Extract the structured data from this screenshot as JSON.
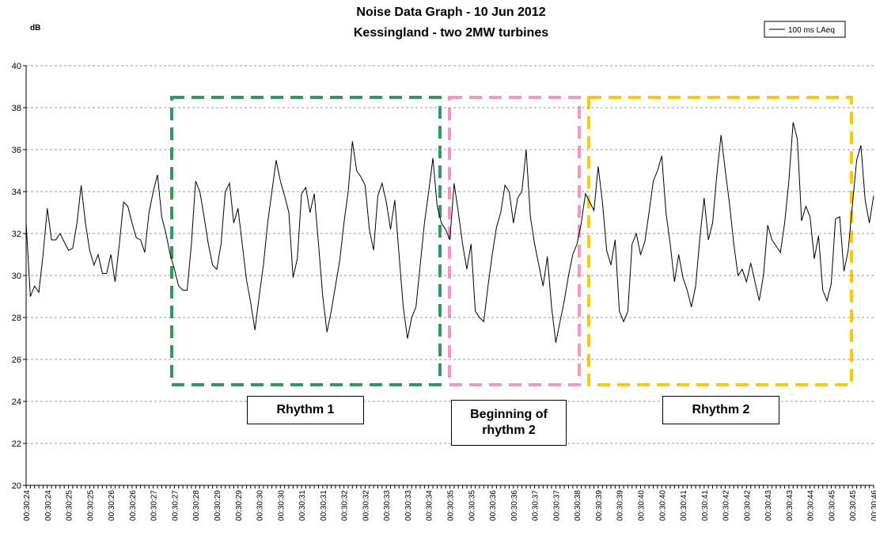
{
  "chart_data": {
    "type": "line",
    "title": "Noise Data Graph - 10 Jun 2012",
    "subtitle": "Kessingland - two 2MW turbines",
    "y_label": "dB",
    "legend": "top-right",
    "grid": true,
    "ylim": [
      20,
      40
    ],
    "yticks": [
      20,
      22,
      24,
      26,
      28,
      30,
      32,
      34,
      36,
      38,
      40
    ],
    "annotations": [
      "Rhythm 1",
      "Beginning of rhythm 2",
      "Rhythm 2"
    ],
    "categories": [
      "00:30:24",
      null,
      null,
      null,
      null,
      "00:30:24",
      null,
      null,
      null,
      null,
      "00:30:25",
      null,
      null,
      null,
      null,
      "00:30:25",
      null,
      null,
      null,
      null,
      "00:30:26",
      null,
      null,
      null,
      null,
      "00:30:26",
      null,
      null,
      null,
      null,
      "00:30:27",
      null,
      null,
      null,
      null,
      "00:30:27",
      null,
      null,
      null,
      null,
      "00:30:28",
      null,
      null,
      null,
      null,
      "00:30:29",
      null,
      null,
      null,
      null,
      "00:30:29",
      null,
      null,
      null,
      null,
      "00:30:30",
      null,
      null,
      null,
      null,
      "00:30:30",
      null,
      null,
      null,
      null,
      "00:30:31",
      null,
      null,
      null,
      null,
      "00:30:31",
      null,
      null,
      null,
      null,
      "00:30:32",
      null,
      null,
      null,
      null,
      "00:30:32",
      null,
      null,
      null,
      null,
      "00:30:33",
      null,
      null,
      null,
      null,
      "00:30:33",
      null,
      null,
      null,
      null,
      "00:30:34",
      null,
      null,
      null,
      null,
      "00:30:35",
      null,
      null,
      null,
      null,
      "00:30:35",
      null,
      null,
      null,
      null,
      "00:30:36",
      null,
      null,
      null,
      null,
      "00:30:36",
      null,
      null,
      null,
      null,
      "00:30:37",
      null,
      null,
      null,
      null,
      "00:30:37",
      null,
      null,
      null,
      null,
      "00:30:38",
      null,
      null,
      null,
      null,
      "00:30:39",
      null,
      null,
      null,
      null,
      "00:30:39",
      null,
      null,
      null,
      null,
      "00:30:40",
      null,
      null,
      null,
      null,
      "00:30:40",
      null,
      null,
      null,
      null,
      "00:30:41",
      null,
      null,
      null,
      null,
      "00:30:41",
      null,
      null,
      null,
      null,
      "00:30:42",
      null,
      null,
      null,
      null,
      "00:30:42",
      null,
      null,
      null,
      null,
      "00:30:43",
      null,
      null,
      null,
      null,
      "00:30:43",
      null,
      null,
      null,
      null,
      "00:30:44",
      null,
      null,
      null,
      null,
      "00:30:45",
      null,
      null,
      null,
      null,
      "00:30:45",
      null,
      null,
      null,
      null,
      "00:30:46"
    ],
    "series": [
      {
        "name": "100 ms LAeq",
        "color": "#000000",
        "values": [
          32.5,
          29,
          29.5,
          29.2,
          31,
          33.2,
          31.7,
          31.7,
          32,
          31.6,
          31.2,
          31.3,
          32.5,
          34.3,
          32.5,
          31.2,
          30.5,
          31,
          30.1,
          30.1,
          31,
          29.7,
          31.5,
          33.5,
          33.3,
          32.5,
          31.8,
          31.7,
          31.1,
          33,
          34,
          34.8,
          32.8,
          32,
          31,
          30.3,
          29.5,
          29.3,
          29.3,
          31.5,
          34.5,
          34,
          32.8,
          31.5,
          30.5,
          30.3,
          31.5,
          34,
          34.4,
          32.5,
          33.2,
          31.5,
          29.8,
          28.7,
          27.4,
          29,
          30.5,
          32.5,
          34,
          35.5,
          34.5,
          33.8,
          33,
          29.9,
          30.8,
          33.9,
          34.2,
          33,
          33.9,
          31.5,
          29,
          27.3,
          28.3,
          29.5,
          30.7,
          32.5,
          34,
          36.4,
          35,
          34.7,
          34.3,
          32.2,
          31.2,
          33.8,
          34.4,
          33.5,
          32.2,
          33.6,
          31,
          28.5,
          27,
          28,
          28.5,
          30.5,
          32.5,
          34,
          35.6,
          33.3,
          32.5,
          32.2,
          31.7,
          34.4,
          33,
          31.5,
          30.3,
          31.5,
          28.3,
          28,
          27.8,
          29.5,
          31,
          32.3,
          33,
          34.3,
          34,
          32.5,
          33.7,
          34,
          36,
          32.8,
          31.5,
          30.5,
          29.5,
          30.9,
          28.5,
          26.8,
          27.8,
          28.8,
          30,
          31,
          31.5,
          32.5,
          33.9,
          33.5,
          33.1,
          35.2,
          33.5,
          31.2,
          30.5,
          31.7,
          28.3,
          27.8,
          28.3,
          31.5,
          32,
          31,
          31.6,
          33,
          34.5,
          35,
          35.7,
          33,
          31.5,
          29.7,
          31,
          29.9,
          29.3,
          28.5,
          29.5,
          31.8,
          33.7,
          31.7,
          32.5,
          34.8,
          36.7,
          35,
          33.4,
          31.5,
          30,
          30.3,
          29.7,
          30.6,
          29.7,
          28.8,
          30,
          32.4,
          31.7,
          31.4,
          31.1,
          32.5,
          34.5,
          37.3,
          36.5,
          32.6,
          33.3,
          32.8,
          30.8,
          31.9,
          29.3,
          28.8,
          29.6,
          32.7,
          32.8,
          30.2,
          31.2,
          33.4,
          35.5,
          36.2,
          33.6,
          32.5,
          33.8
        ]
      }
    ]
  }
}
